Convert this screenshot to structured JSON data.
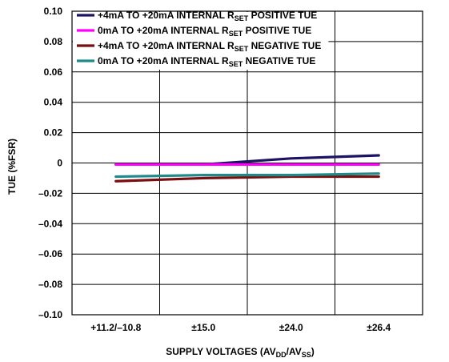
{
  "chart_data": {
    "type": "line",
    "title": "",
    "xlabel": {
      "pre": "SUPPLY VOLTAGES (AV",
      "sub1": "DD",
      "mid": "/AV",
      "sub2": "SS",
      "post": ")"
    },
    "ylabel": "TUE (%FSR)",
    "categories": [
      "+11.2/–10.8",
      "±15.0",
      "±24.0",
      "±26.4"
    ],
    "ylim": [
      -0.1,
      0.1
    ],
    "yticks": [
      "0.10",
      "0.08",
      "0.06",
      "0.04",
      "0.02",
      "0",
      "–0.02",
      "–0.04",
      "–0.06",
      "–0.08",
      "–0.10"
    ],
    "grid": true,
    "legend_position": "top-left",
    "series": [
      {
        "name": {
          "pre": "+4mA TO +20mA INTERNAL R",
          "sub": "SET",
          "post": " POSITIVE TUE"
        },
        "color": "#1b1464",
        "values": [
          -0.001,
          -0.001,
          0.003,
          0.005
        ]
      },
      {
        "name": {
          "pre": "0mA TO +20mA INTERNAL R",
          "sub": "SET",
          "post": " POSITIVE TUE"
        },
        "color": "#ff00ff",
        "values": [
          -0.001,
          -0.001,
          -0.001,
          -0.001
        ]
      },
      {
        "name": {
          "pre": "+4mA TO +20mA INTERNAL R",
          "sub": "SET",
          "post": " NEGATIVE TUE"
        },
        "color": "#7a0e0e",
        "values": [
          -0.012,
          -0.01,
          -0.009,
          -0.009
        ]
      },
      {
        "name": {
          "pre": "0mA TO +20mA INTERNAL R",
          "sub": "SET",
          "post": " NEGATIVE TUE"
        },
        "color": "#1f8a8a",
        "values": [
          -0.009,
          -0.008,
          -0.008,
          -0.007
        ]
      }
    ]
  }
}
